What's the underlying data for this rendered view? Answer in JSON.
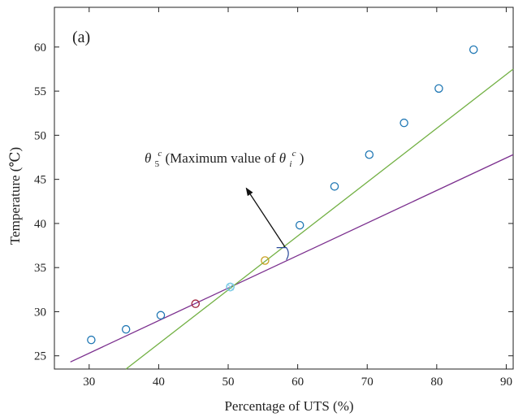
{
  "chart_data": {
    "type": "scatter",
    "title": "",
    "panel_label": "(a)",
    "xlabel": "Percentage of UTS (%)",
    "ylabel": "Temperature (℃)",
    "xlim": [
      25,
      91
    ],
    "ylim": [
      23.5,
      64.5
    ],
    "xticks": [
      30,
      40,
      50,
      60,
      70,
      80,
      90
    ],
    "yticks": [
      25,
      30,
      35,
      40,
      45,
      50,
      55,
      60
    ],
    "grid": false,
    "legend": "none",
    "series": [
      {
        "kind": "points",
        "color": "#1f77b4",
        "x": [
          30.3,
          35.3,
          40.3,
          50.3,
          60.3,
          65.3,
          70.3,
          75.3,
          80.3,
          85.3
        ],
        "y": [
          26.8,
          28.0,
          29.6,
          32.8,
          39.8,
          44.2,
          47.8,
          51.4,
          55.3,
          59.7
        ]
      },
      {
        "kind": "points",
        "color": "#a0203a",
        "x": [
          45.3
        ],
        "y": [
          30.9
        ]
      },
      {
        "kind": "points",
        "color": "#c8a020",
        "x": [
          55.3
        ],
        "y": [
          35.8
        ]
      },
      {
        "kind": "points",
        "color": "#7fd0e8",
        "x": [
          50.3
        ],
        "y": [
          32.8
        ]
      }
    ],
    "lines": [
      {
        "kind": "line",
        "color": "#7b2f8e",
        "x": [
          27.3,
          91
        ],
        "y": [
          24.3,
          47.8
        ]
      },
      {
        "kind": "line",
        "color": "#72b043",
        "x": [
          35.3,
          91
        ],
        "y": [
          23.5,
          57.5
        ]
      }
    ],
    "annotation": {
      "text_main": "θ",
      "sup1": "c",
      "sub1": "5",
      "text_mid": " (Maximum value of ",
      "text_main2": "θ",
      "sup2": "c",
      "sub2": "i",
      "text_end": ")",
      "arrow_from": [
        58.2,
        37.3
      ],
      "arrow_to": [
        52.6,
        44.0
      ],
      "arc_at": [
        58.6,
        36.8
      ]
    }
  }
}
